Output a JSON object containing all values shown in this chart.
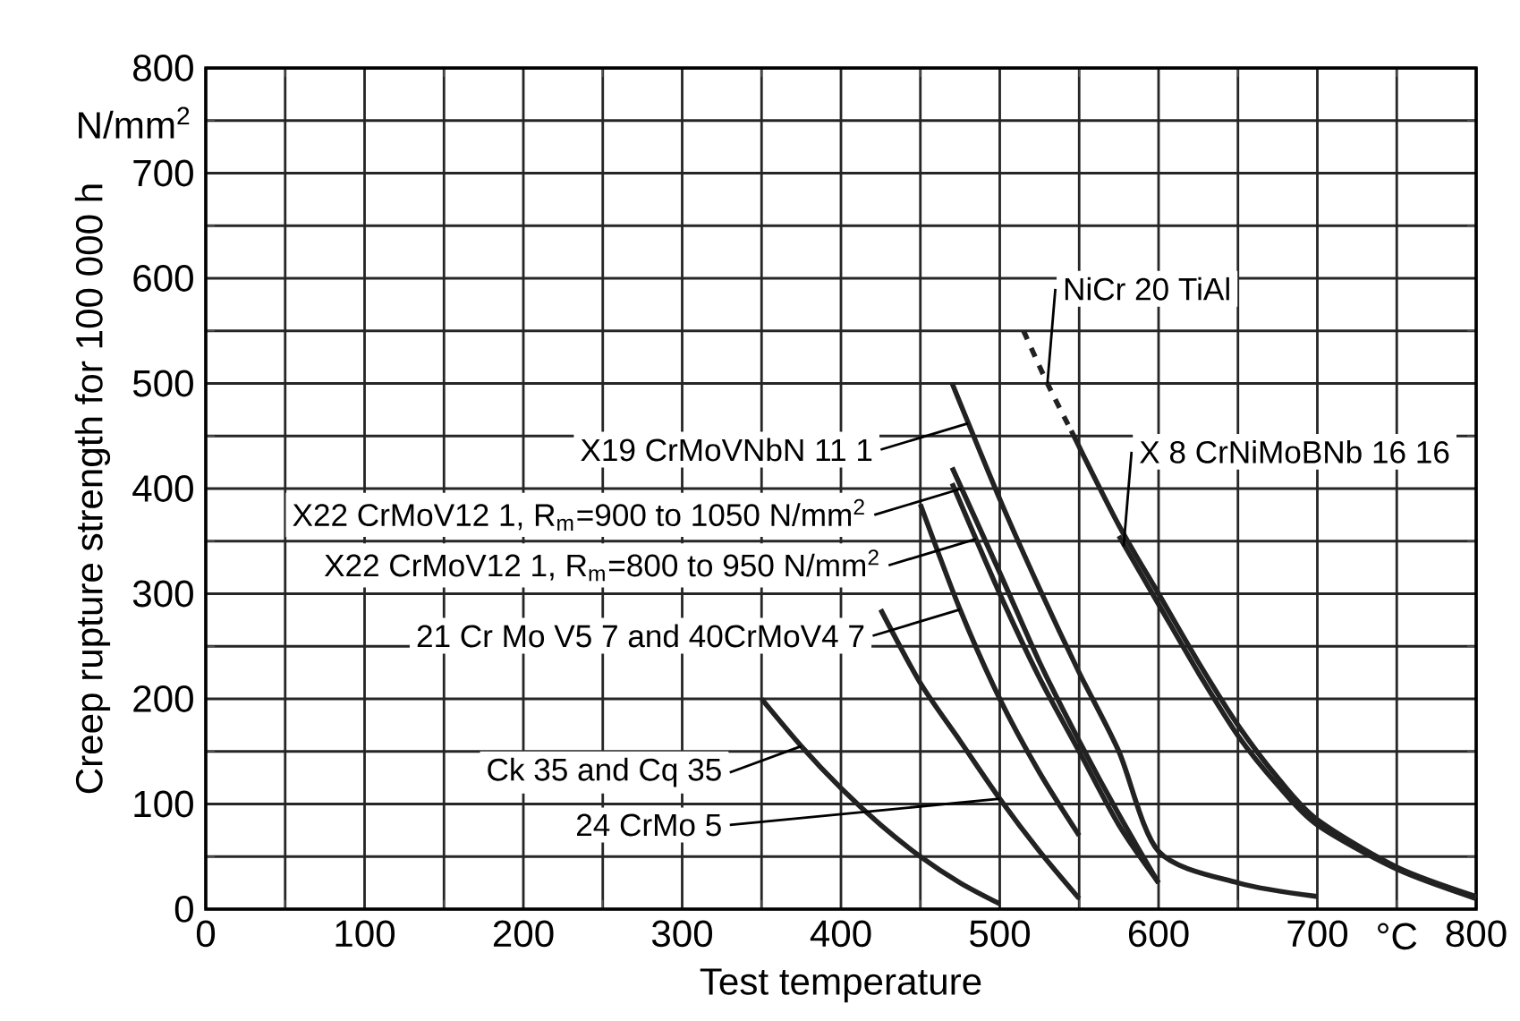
{
  "chart_data": {
    "type": "line",
    "xlabel": "Test temperature",
    "ylabel": "Creep rupture strength for 100 000 h",
    "xlim": [
      0,
      800
    ],
    "ylim": [
      0,
      800
    ],
    "xticks": [
      0,
      100,
      200,
      300,
      400,
      500,
      600,
      700,
      800
    ],
    "yticks": [
      0,
      100,
      200,
      300,
      400,
      500,
      600,
      700,
      800
    ],
    "grid": true,
    "line_style": "solid",
    "series": [
      {
        "color": "#222222",
        "x": [
          350,
          375,
          400,
          425,
          450,
          475,
          500
        ],
        "values": [
          200,
          155,
          115,
          80,
          50,
          25,
          5
        ]
      },
      {
        "color": "#222222",
        "x": [
          425,
          450,
          475,
          500,
          525,
          550
        ],
        "values": [
          285,
          215,
          160,
          105,
          55,
          10
        ]
      },
      {
        "color": "#222222",
        "x": [
          450,
          475,
          500,
          525,
          550
        ],
        "values": [
          385,
          285,
          200,
          130,
          70
        ]
      },
      {
        "color": "#222222",
        "x": [
          470,
          500,
          525,
          550,
          575,
          600
        ],
        "values": [
          405,
          300,
          220,
          150,
          80,
          25
        ]
      },
      {
        "color": "#222222",
        "x": [
          470,
          500,
          525,
          550,
          575,
          600
        ],
        "values": [
          420,
          320,
          235,
          160,
          90,
          25
        ]
      },
      {
        "color": "#222222",
        "x": [
          470,
          500,
          525,
          550,
          575,
          600,
          650,
          700
        ],
        "values": [
          500,
          390,
          305,
          225,
          150,
          55,
          25,
          12
        ]
      },
      {
        "color": "#222222",
        "line_style": "dashed",
        "x": [
          515,
          530,
          545
        ],
        "values": [
          550,
          500,
          455
        ]
      },
      {
        "color": "#222222",
        "x": [
          545,
          575,
          600,
          625,
          650,
          675,
          700,
          750,
          800
        ],
        "values": [
          455,
          365,
          300,
          235,
          175,
          125,
          85,
          40,
          12
        ]
      },
      {
        "color": "#222222",
        "x": [
          575,
          600,
          625,
          650,
          675,
          700,
          750,
          800
        ],
        "values": [
          355,
          290,
          225,
          165,
          118,
          80,
          38,
          10
        ]
      }
    ],
    "annotations": [
      {
        "text": "X19 CrMoVNbN 11 1",
        "x": 480,
        "y": 462
      },
      {
        "text": "X22 CrMoV12 1, R$_{m}$=900 to 1050 N/mm$^{2}$",
        "x": 476,
        "y": 400
      },
      {
        "text": "X22 CrMoV12 1, R$_{m}$=800 to 950 N/mm$^{2}$",
        "x": 485,
        "y": 352
      },
      {
        "text": "21 Cr Mo V5 7 and 40CrMoV4 7",
        "x": 475,
        "y": 285
      },
      {
        "text": "Ck 35 and Cq 35",
        "x": 375,
        "y": 155
      },
      {
        "text": "24 CrMo 5",
        "x": 500,
        "y": 105
      },
      {
        "text": "NiCr 20 TiAl",
        "x": 530,
        "y": 500
      },
      {
        "text": "X 8 CrNiMoBNb 16 16",
        "x": 578,
        "y": 345
      },
      "N/mm$^{2}$",
      "°C"
    ]
  }
}
